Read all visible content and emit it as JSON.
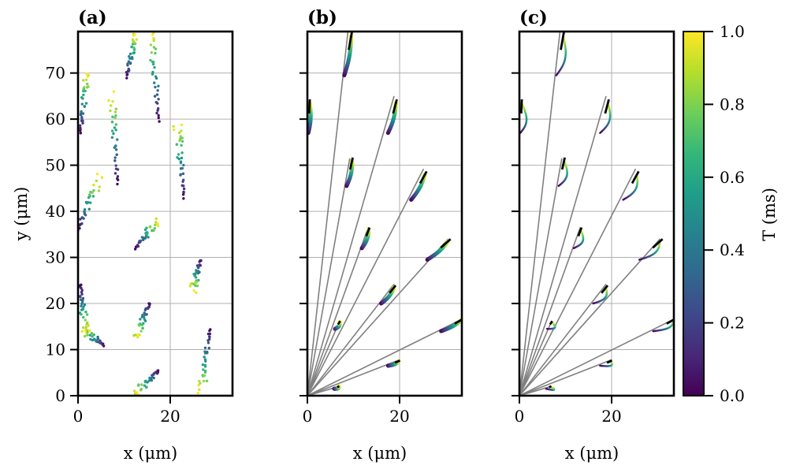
{
  "chart_data": [
    {
      "panel": "(a)",
      "type": "scatter",
      "xlabel": "x (μm)",
      "ylabel": "y (μm)",
      "xlim": [
        0,
        33.5
      ],
      "ylim": [
        0,
        79
      ],
      "xticks": [
        0,
        20
      ],
      "yticks": [
        0,
        10,
        20,
        30,
        40,
        50,
        60,
        70
      ],
      "grid": true,
      "trajectories": [
        {
          "x0": 10.5,
          "y0": 69.0,
          "x1": 12.5,
          "y1": 79.0
        },
        {
          "x0": 17.5,
          "y0": 59.5,
          "x1": 16.0,
          "y1": 79.0
        },
        {
          "x0": 0.5,
          "y0": 57.0,
          "x1": 2.0,
          "y1": 70.0
        },
        {
          "x0": 8.5,
          "y0": 46.0,
          "x1": 7.5,
          "y1": 65.0
        },
        {
          "x0": 23.0,
          "y0": 43.0,
          "x1": 21.5,
          "y1": 59.0
        },
        {
          "x0": 0.0,
          "y0": 36.0,
          "x1": 4.5,
          "y1": 47.0
        },
        {
          "x0": 12.5,
          "y0": 32.0,
          "x1": 17.0,
          "y1": 38.0
        },
        {
          "x0": 26.5,
          "y0": 29.5,
          "x1": 25.0,
          "y1": 23.0
        },
        {
          "x0": 0.5,
          "y0": 24.0,
          "x1": 1.5,
          "y1": 14.0
        },
        {
          "x0": 15.5,
          "y0": 20.0,
          "x1": 12.5,
          "y1": 13.0
        },
        {
          "x0": 28.5,
          "y0": 14.5,
          "x1": 27.0,
          "y1": 1.0
        },
        {
          "x0": 5.5,
          "y0": 11.0,
          "x1": 1.5,
          "y1": 14.5
        },
        {
          "x0": 17.5,
          "y0": 5.5,
          "x1": 12.5,
          "y1": 0.5
        }
      ]
    },
    {
      "panel": "(b)",
      "type": "line",
      "xlabel": "x (μm)",
      "xlim": [
        0,
        33.5
      ],
      "ylim": [
        0,
        79
      ],
      "xticks": [
        0,
        20
      ],
      "yticks": [
        0,
        10,
        20,
        30,
        40,
        50,
        60,
        70
      ],
      "grid": true,
      "origin": [
        0,
        0
      ],
      "rays": [
        {
          "x": 8.8,
          "y": 79.0
        },
        {
          "x": 18.8,
          "y": 65.0
        },
        {
          "x": 9.2,
          "y": 51.5
        },
        {
          "x": 25.2,
          "y": 49.2
        },
        {
          "x": 13.2,
          "y": 36.5
        },
        {
          "x": 30.5,
          "y": 34.0
        },
        {
          "x": 18.8,
          "y": 24.2
        },
        {
          "x": 33.5,
          "y": 16.6
        },
        {
          "x": 7.0,
          "y": 16.2
        },
        {
          "x": 20.0,
          "y": 7.8
        },
        {
          "x": 6.8,
          "y": 2.0
        }
      ],
      "arcs": [
        {
          "x0": 8.0,
          "y0": 69.5,
          "x1": 9.5,
          "y1": 78.0
        },
        {
          "x0": 17.5,
          "y0": 57.0,
          "x1": 19.2,
          "y1": 63.5
        },
        {
          "x0": 8.5,
          "y0": 45.5,
          "x1": 9.7,
          "y1": 51.0
        },
        {
          "x0": 22.5,
          "y0": 42.5,
          "x1": 25.5,
          "y1": 48.0
        },
        {
          "x0": 11.8,
          "y0": 32.0,
          "x1": 13.3,
          "y1": 36.0
        },
        {
          "x0": 26.0,
          "y0": 29.5,
          "x1": 30.5,
          "y1": 33.5
        },
        {
          "x0": 16.0,
          "y0": 20.0,
          "x1": 18.8,
          "y1": 23.5
        },
        {
          "x0": 29.0,
          "y0": 14.0,
          "x1": 33.5,
          "y1": 16.5
        },
        {
          "x0": 6.0,
          "y0": 14.5,
          "x1": 7.0,
          "y1": 16.0
        },
        {
          "x0": 17.5,
          "y0": 6.5,
          "x1": 19.8,
          "y1": 7.5
        },
        {
          "x0": 5.8,
          "y0": 1.5,
          "x1": 6.8,
          "y1": 2.0
        },
        {
          "x0": 0.2,
          "y0": 57.0,
          "x1": 0.5,
          "y1": 63.5
        }
      ]
    },
    {
      "panel": "(c)",
      "type": "line",
      "xlabel": "x (μm)",
      "xlim": [
        0,
        33.5
      ],
      "ylim": [
        0,
        79
      ],
      "xticks": [
        0,
        20
      ],
      "yticks": [
        0,
        10,
        20,
        30,
        40,
        50,
        60,
        70
      ],
      "grid": true,
      "origin": [
        0,
        0
      ]
    }
  ],
  "colorbar": {
    "label": "T (ms)",
    "range": [
      0.0,
      1.0
    ],
    "ticks": [
      "0.0",
      "0.2",
      "0.4",
      "0.6",
      "0.8",
      "1.0"
    ],
    "colors": [
      "#440154",
      "#482878",
      "#3e4989",
      "#31688e",
      "#26828e",
      "#1f9e89",
      "#35b779",
      "#6ece58",
      "#b5de2b",
      "#fde725"
    ]
  }
}
